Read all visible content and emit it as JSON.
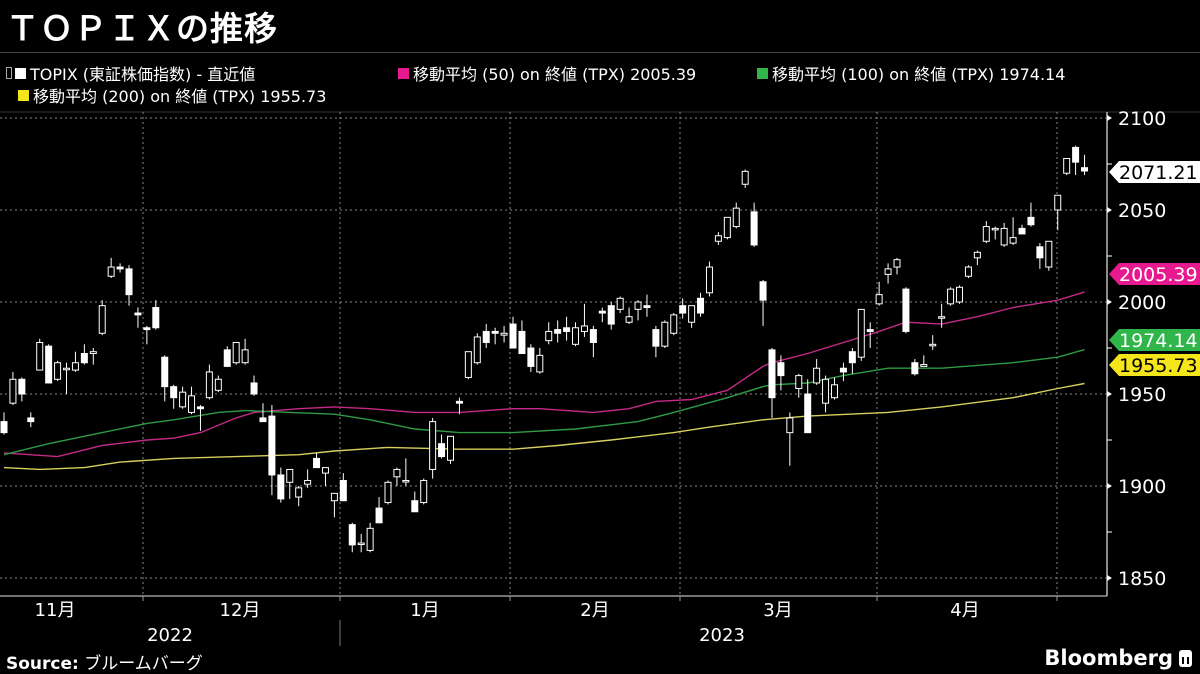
{
  "title": "ＴＯＰＩＸの推移",
  "legend": [
    {
      "label": "TOPIX (東証株価指数) - 直近値",
      "color": "#ffffff"
    },
    {
      "label": "移動平均 (50)  on 終値 (TPX) 2005.39",
      "color": "#e6198f"
    },
    {
      "label": "移動平均 (100)  on 終値 (TPX) 1974.14",
      "color": "#2fb54a"
    },
    {
      "label": "移動平均 (200)  on 終値 (TPX)  1955.73",
      "color": "#f5e51b"
    }
  ],
  "footer": {
    "source_label": "Source:",
    "source_value": "ブルームバーグ",
    "brand": "Bloomberg"
  },
  "chart_data": {
    "type": "candlestick",
    "ylim": [
      1850,
      2100
    ],
    "y_ticks": [
      "2100",
      "2050",
      "2000",
      "1950",
      "1900",
      "1850"
    ],
    "y_tick_values": [
      2100,
      2050,
      2000,
      1950,
      1900,
      1850
    ],
    "grid": true,
    "x_months": [
      "11月",
      "12月",
      "1月",
      "2月",
      "3月",
      "4月"
    ],
    "x_years": [
      "2022",
      "2023"
    ],
    "candle_fields": [
      "open",
      "high",
      "low",
      "close"
    ],
    "candles": [
      [
        1935,
        1940,
        1928,
        1929
      ],
      [
        1945,
        1962,
        1944,
        1958
      ],
      [
        1958,
        1959,
        1946,
        1950
      ],
      [
        1937,
        1940,
        1932,
        1935
      ],
      [
        1963,
        1980,
        1963,
        1978
      ],
      [
        1976,
        1977,
        1956,
        1956
      ],
      [
        1958,
        1968,
        1957,
        1967
      ],
      [
        1964,
        1967,
        1950,
        1964
      ],
      [
        1963,
        1973,
        1962,
        1967
      ],
      [
        1972,
        1977,
        1966,
        1967
      ],
      [
        1972,
        1975,
        1966,
        1973
      ],
      [
        1983,
        2001,
        1982,
        1998
      ],
      [
        2014,
        2024,
        2013,
        2019
      ],
      [
        2019,
        2021,
        2016,
        2018
      ],
      [
        2018,
        2020,
        1998,
        2004
      ],
      [
        1994,
        1997,
        1986,
        1993
      ],
      [
        1986,
        1987,
        1977,
        1985
      ],
      [
        1997,
        2001,
        1985,
        1986
      ],
      [
        1970,
        1971,
        1946,
        1954
      ],
      [
        1954,
        1955,
        1942,
        1948
      ],
      [
        1943,
        1954,
        1942,
        1951
      ],
      [
        1940,
        1954,
        1939,
        1949
      ],
      [
        1943,
        1944,
        1930,
        1942
      ],
      [
        1948,
        1966,
        1947,
        1962
      ],
      [
        1952,
        1960,
        1951,
        1958
      ],
      [
        1974,
        1976,
        1965,
        1965
      ],
      [
        1967,
        1978,
        1966,
        1978
      ],
      [
        1967,
        1980,
        1966,
        1974
      ],
      [
        1956,
        1960,
        1949,
        1950
      ],
      [
        1937,
        1945,
        1935,
        1935
      ],
      [
        1938,
        1944,
        1895,
        1906
      ],
      [
        1906,
        1910,
        1891,
        1893
      ],
      [
        1902,
        1909,
        1893,
        1909
      ],
      [
        1894,
        1900,
        1889,
        1899
      ],
      [
        1901,
        1909,
        1899,
        1903
      ],
      [
        1915,
        1918,
        1910,
        1910
      ],
      [
        1907,
        1910,
        1900,
        1910
      ],
      [
        1892,
        1896,
        1883,
        1896
      ],
      [
        1903,
        1907,
        1892,
        1892
      ],
      [
        1879,
        1880,
        1864,
        1868
      ],
      [
        1869,
        1874,
        1864,
        1869
      ],
      [
        1865,
        1880,
        1864,
        1877
      ],
      [
        1888,
        1894,
        1880,
        1880
      ],
      [
        1891,
        1903,
        1890,
        1902
      ],
      [
        1905,
        1910,
        1900,
        1909
      ],
      [
        1903,
        1915,
        1900,
        1903
      ],
      [
        1892,
        1897,
        1886,
        1886
      ],
      [
        1891,
        1904,
        1890,
        1903
      ],
      [
        1909,
        1937,
        1904,
        1935
      ],
      [
        1923,
        1928,
        1915,
        1916
      ],
      [
        1914,
        1927,
        1912,
        1927
      ],
      [
        1946,
        1948,
        1939,
        1945
      ],
      [
        1959,
        1973,
        1958,
        1973
      ],
      [
        1967,
        1983,
        1966,
        1981
      ],
      [
        1984,
        1988,
        1975,
        1978
      ],
      [
        1984,
        1986,
        1977,
        1983
      ],
      [
        1982,
        1987,
        1978,
        1983
      ],
      [
        1988,
        1992,
        1975,
        1975
      ],
      [
        1984,
        1990,
        1972,
        1972
      ],
      [
        1975,
        1977,
        1962,
        1965
      ],
      [
        1962,
        1975,
        1961,
        1971
      ],
      [
        1979,
        1989,
        1977,
        1984
      ],
      [
        1985,
        1990,
        1978,
        1983
      ],
      [
        1986,
        1992,
        1979,
        1984
      ],
      [
        1977,
        1989,
        1976,
        1986
      ],
      [
        1984,
        1999,
        1981,
        1987
      ],
      [
        1985,
        1987,
        1970,
        1978
      ],
      [
        1995,
        1997,
        1989,
        1994
      ],
      [
        1998,
        2000,
        1985,
        1988
      ],
      [
        1996,
        2003,
        1994,
        2002
      ],
      [
        1989,
        1997,
        1988,
        1992
      ],
      [
        1996,
        2001,
        1990,
        2000
      ],
      [
        1998,
        2004,
        1992,
        1997
      ],
      [
        1985,
        1987,
        1970,
        1976
      ],
      [
        1976,
        1990,
        1975,
        1989
      ],
      [
        1983,
        1994,
        1982,
        1993
      ],
      [
        1998,
        2002,
        1991,
        1994
      ],
      [
        1989,
        1998,
        1986,
        1998
      ],
      [
        2002,
        2005,
        1992,
        1994
      ],
      [
        2005,
        2022,
        2003,
        2019
      ],
      [
        2033,
        2038,
        2031,
        2036
      ],
      [
        2035,
        2046,
        2034,
        2046
      ],
      [
        2041,
        2054,
        2040,
        2051
      ],
      [
        2064,
        2072,
        2062,
        2071
      ],
      [
        2049,
        2054,
        2030,
        2031
      ],
      [
        2011,
        2012,
        1987,
        2001
      ],
      [
        1974,
        1975,
        1937,
        1948
      ],
      [
        1967,
        1971,
        1952,
        1960
      ],
      [
        1929,
        1940,
        1911,
        1937
      ],
      [
        1953,
        1961,
        1948,
        1960
      ],
      [
        1950,
        1958,
        1929,
        1929
      ],
      [
        1956,
        1969,
        1955,
        1964
      ],
      [
        1945,
        1960,
        1940,
        1958
      ],
      [
        1948,
        1959,
        1947,
        1955
      ],
      [
        1964,
        1967,
        1957,
        1962
      ],
      [
        1973,
        1975,
        1961,
        1967
      ],
      [
        1970,
        1996,
        1968,
        1996
      ],
      [
        1985,
        1989,
        1975,
        1984
      ],
      [
        1999,
        2011,
        1998,
        2004
      ],
      [
        2015,
        2021,
        2010,
        2018
      ],
      [
        2019,
        2024,
        2015,
        2023
      ],
      [
        2007,
        2008,
        1983,
        1984
      ],
      [
        1967,
        1969,
        1960,
        1961
      ],
      [
        1965,
        1971,
        1965,
        1966
      ],
      [
        1977,
        1982,
        1974,
        1977
      ],
      [
        1992,
        1999,
        1986,
        1992
      ],
      [
        1999,
        2008,
        1998,
        2007
      ],
      [
        2000,
        2009,
        1999,
        2008
      ],
      [
        2014,
        2020,
        2013,
        2019
      ],
      [
        2024,
        2028,
        2020,
        2027
      ],
      [
        2033,
        2044,
        2032,
        2041
      ],
      [
        2040,
        2041,
        2034,
        2040
      ],
      [
        2031,
        2043,
        2030,
        2040
      ],
      [
        2032,
        2046,
        2031,
        2035
      ],
      [
        2040,
        2042,
        2037,
        2037
      ],
      [
        2046,
        2054,
        2041,
        2042
      ],
      [
        2030,
        2032,
        2018,
        2024
      ],
      [
        2019,
        2033,
        2017,
        2033
      ],
      [
        2050,
        2058,
        2039,
        2058
      ],
      [
        2070,
        2078,
        2069,
        2078
      ],
      [
        2084,
        2085,
        2069,
        2076
      ],
      [
        2073,
        2080,
        2069,
        2071.21
      ]
    ],
    "series": [
      {
        "name": "移動平均 (50)",
        "color": "#c42a86",
        "last": "2005.39",
        "points": [
          [
            0,
            1918
          ],
          [
            6,
            1916
          ],
          [
            11,
            1922
          ],
          [
            16,
            1925
          ],
          [
            19,
            1926
          ],
          [
            22,
            1929
          ],
          [
            26,
            1937
          ],
          [
            28,
            1940
          ],
          [
            33,
            1942
          ],
          [
            37,
            1943
          ],
          [
            41,
            1942
          ],
          [
            46,
            1940
          ],
          [
            51,
            1940
          ],
          [
            57,
            1942
          ],
          [
            60,
            1942
          ],
          [
            66,
            1940
          ],
          [
            70,
            1942
          ],
          [
            73,
            1946
          ],
          [
            77,
            1947
          ],
          [
            81,
            1952
          ],
          [
            85,
            1965
          ],
          [
            86,
            1967
          ],
          [
            90,
            1972
          ],
          [
            94,
            1978
          ],
          [
            98,
            1984
          ],
          [
            101,
            1989
          ],
          [
            105,
            1988
          ],
          [
            109,
            1992
          ],
          [
            113,
            1997
          ],
          [
            118,
            2001
          ],
          [
            121,
            2005.39
          ]
        ]
      },
      {
        "name": "移動平均 (100)",
        "color": "#2f9a45",
        "last": "1974.14",
        "points": [
          [
            0,
            1917
          ],
          [
            5,
            1923
          ],
          [
            11,
            1929
          ],
          [
            16,
            1934
          ],
          [
            19,
            1936
          ],
          [
            24,
            1940
          ],
          [
            27,
            1941
          ],
          [
            32,
            1940
          ],
          [
            37,
            1939
          ],
          [
            41,
            1936
          ],
          [
            46,
            1931
          ],
          [
            51,
            1929
          ],
          [
            57,
            1929
          ],
          [
            64,
            1931
          ],
          [
            71,
            1935
          ],
          [
            75,
            1940
          ],
          [
            81,
            1948
          ],
          [
            85,
            1954
          ],
          [
            86,
            1955
          ],
          [
            90,
            1956
          ],
          [
            94,
            1960
          ],
          [
            99,
            1964
          ],
          [
            105,
            1964
          ],
          [
            113,
            1967
          ],
          [
            118,
            1970
          ],
          [
            121,
            1974.14
          ]
        ]
      },
      {
        "name": "移動平均 (200)",
        "color": "#d8cf5c",
        "last": "1955.73",
        "points": [
          [
            0,
            1910
          ],
          [
            4,
            1909
          ],
          [
            9,
            1910
          ],
          [
            13,
            1913
          ],
          [
            19,
            1915
          ],
          [
            26,
            1916
          ],
          [
            33,
            1917
          ],
          [
            37,
            1919
          ],
          [
            43,
            1921
          ],
          [
            51,
            1920
          ],
          [
            57,
            1920
          ],
          [
            62,
            1922
          ],
          [
            68,
            1925
          ],
          [
            75,
            1929
          ],
          [
            79,
            1932
          ],
          [
            85,
            1936
          ],
          [
            90,
            1938
          ],
          [
            99,
            1940
          ],
          [
            105,
            1943
          ],
          [
            113,
            1948
          ],
          [
            118,
            1953
          ],
          [
            121,
            1955.73
          ]
        ]
      }
    ],
    "value_tags": [
      {
        "label": "2071.21",
        "value": 2071.21,
        "bg": "#ffffff",
        "fg": "#000000"
      },
      {
        "label": "2005.39",
        "value": 2005.39,
        "bg": "#e6198f",
        "fg": "#ffffff"
      },
      {
        "label": "1974.14",
        "value": 1974.14,
        "bg": "#2fb54a",
        "fg": "#ffffff"
      },
      {
        "label": "1955.73",
        "value": 1955.73,
        "bg": "#f5e51b",
        "fg": "#000000"
      }
    ]
  }
}
